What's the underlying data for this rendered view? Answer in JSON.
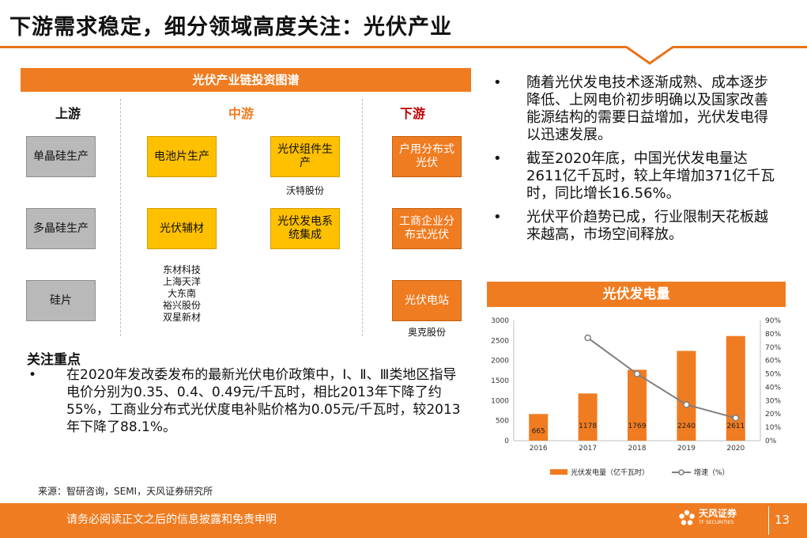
{
  "title": "下游需求稳定，细分领域高度关注：光伏产业",
  "chain": {
    "header": "光伏产业链投资图谱",
    "upstream": {
      "label": "上游",
      "boxes": [
        "单晶硅生产",
        "多晶硅生产",
        "硅片"
      ]
    },
    "midstream": {
      "label": "中游",
      "boxes": [
        "电池片生产",
        "光伏组件生产",
        "光伏辅材",
        "光伏发电系统集成"
      ],
      "companies_module": "沃特股份",
      "companies_aux": [
        "东材科技",
        "上海天洋",
        "大东南",
        "裕兴股份",
        "双星新材"
      ]
    },
    "downstream": {
      "label": "下游",
      "boxes": [
        "户用分布式光伏",
        "工商企业分布式光伏",
        "光伏电站"
      ],
      "companies_station": "奥克股份"
    }
  },
  "bullets": [
    "随着光伏发电技术逐渐成熟、成本逐步降低、上网电价初步明确以及国家改善能源结构的需要日益增加，光伏发电得以迅速发展。",
    "截至2020年底，中国光伏发电量达2611亿千瓦时，较上年增加371亿千瓦时，同比增长16.56%。",
    "光伏平价趋势已成，行业限制天花板越来越高，市场空间释放。"
  ],
  "focus": {
    "title": "关注重点",
    "text": "在2020年发改委发布的最新光伏电价政策中，Ⅰ、Ⅱ、Ⅲ类地区指导电价分别为0.35、0.4、0.49元/千瓦时，相比2013年下降了约55%，工商业分布式光伏度电补贴价格为0.05元/千瓦时，较2013年下降了88.1%。"
  },
  "chart_header": "光伏发电量",
  "chart_data": {
    "type": "bar",
    "categories": [
      "2016",
      "2017",
      "2018",
      "2019",
      "2020"
    ],
    "series": [
      {
        "name": "光伏发电量（亿千瓦时）",
        "type": "bar",
        "axis": "left",
        "values": [
          665,
          1178,
          1769,
          2240,
          2611
        ],
        "color": "#f07c21"
      },
      {
        "name": "增速（%）",
        "type": "line",
        "axis": "right",
        "values": [
          null,
          77,
          50,
          27,
          17
        ],
        "color": "#7f7f7f"
      }
    ],
    "y_left": {
      "min": 0,
      "max": 3000,
      "ticks": [
        0,
        500,
        1000,
        1500,
        2000,
        2500,
        3000
      ]
    },
    "y_right": {
      "min": 0,
      "max": 90,
      "ticks": [
        "0%",
        "10%",
        "20%",
        "30%",
        "40%",
        "50%",
        "60%",
        "70%",
        "80%",
        "90%"
      ]
    },
    "legend_position": "bottom"
  },
  "source": "来源：智研咨询，SEMI，天风证券研究所",
  "footer": {
    "disclaimer": "请务必阅读正文之后的信息披露和免责申明",
    "logo_text": "天风证券",
    "logo_sub": "TF SECURITIES",
    "page": "13"
  },
  "colors": {
    "accent": "#f07c21",
    "yellow": "#ffc000",
    "gray": "#b9b9b9"
  }
}
